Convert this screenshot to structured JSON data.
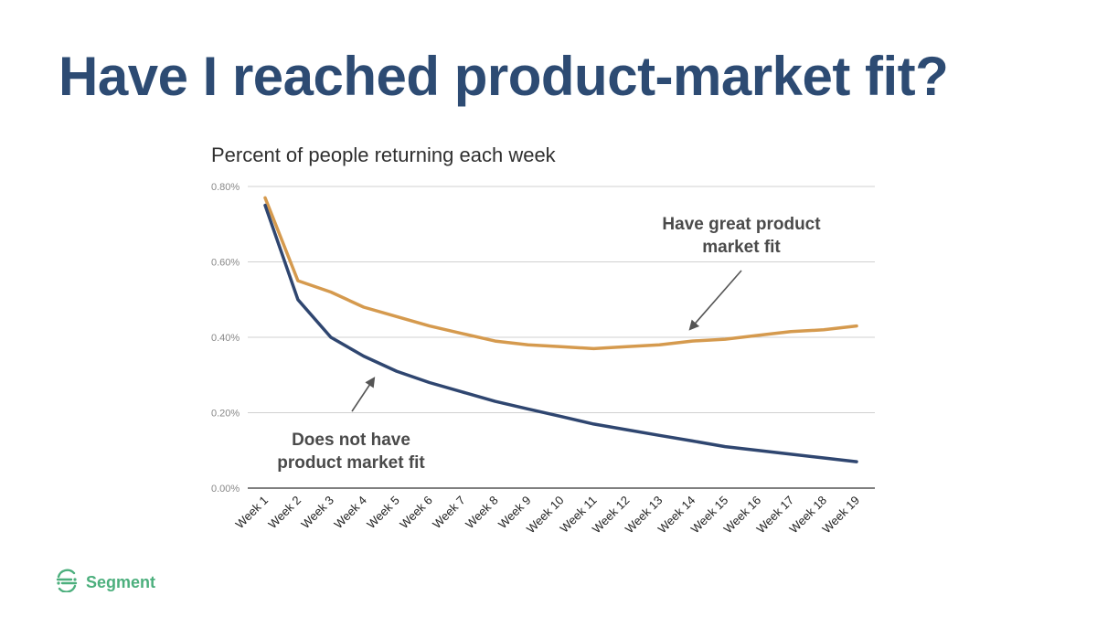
{
  "slide": {
    "title": "Have I reached product-market fit?"
  },
  "brand": {
    "name": "Segment",
    "logo_icon": "segment-logo-icon",
    "color": "#4caf7d"
  },
  "colors": {
    "title": "#2d4b73",
    "series_great_fit": "#d59a4e",
    "series_no_fit": "#2f4670"
  },
  "chart_data": {
    "type": "line",
    "title": "Percent of people returning each week",
    "xlabel": "",
    "ylabel": "",
    "categories": [
      "Week 1",
      "Week 2",
      "Week 3",
      "Week 4",
      "Week 5",
      "Week 6",
      "Week 7",
      "Week 8",
      "Week 9",
      "Week 10",
      "Week 11",
      "Week 12",
      "Week 13",
      "Week 14",
      "Week 15",
      "Week 16",
      "Week 17",
      "Week 18",
      "Week 19"
    ],
    "y_ticks": [
      "0.00%",
      "0.20%",
      "0.40%",
      "0.60%",
      "0.80%"
    ],
    "ylim": [
      0,
      0.8
    ],
    "grid": true,
    "series": [
      {
        "key": "great_fit",
        "color": "#d59a4e",
        "values": [
          0.77,
          0.55,
          0.52,
          0.48,
          0.455,
          0.43,
          0.41,
          0.39,
          0.38,
          0.375,
          0.37,
          0.375,
          0.38,
          0.39,
          0.395,
          0.405,
          0.415,
          0.42,
          0.43
        ]
      },
      {
        "key": "no_fit",
        "color": "#2f4670",
        "values": [
          0.75,
          0.5,
          0.4,
          0.35,
          0.31,
          0.28,
          0.255,
          0.23,
          0.21,
          0.19,
          0.17,
          0.155,
          0.14,
          0.125,
          0.11,
          0.1,
          0.09,
          0.08,
          0.07
        ]
      }
    ],
    "annotations": [
      {
        "key": "great_fit",
        "lines": [
          "Have great product",
          "market fit"
        ]
      },
      {
        "key": "no_fit",
        "lines": [
          "Does not have",
          "product market fit"
        ]
      }
    ]
  }
}
